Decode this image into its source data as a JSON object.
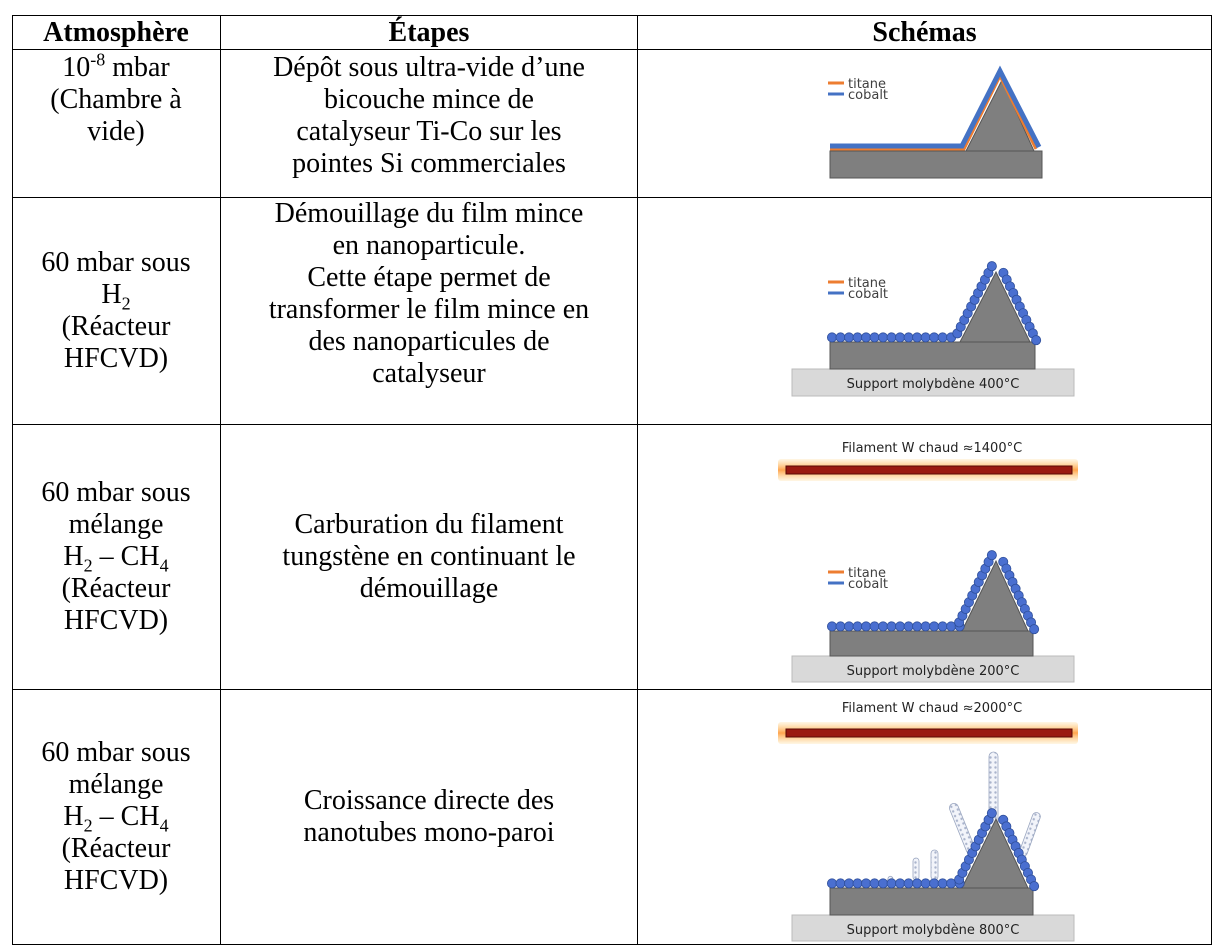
{
  "headers": [
    "Atmosphère",
    "Étapes",
    "Schémas"
  ],
  "rows": [
    {
      "atmosphere": {
        "l1_base": "10",
        "l1_sup": "-8",
        "l1_rest": " mbar",
        "l2": "(Chambre à",
        "l3": "vide)"
      },
      "etape": [
        "Dépôt sous ultra-vide d’une",
        "bicouche mince de",
        "catalyseur Ti-Co sur les",
        "pointes Si commerciales"
      ],
      "schema": {
        "legend": [
          "titane",
          "cobalt"
        ]
      }
    },
    {
      "atmosphere": {
        "l1": "60 mbar sous",
        "l2_base": "H",
        "l2_sub": "2",
        "l3": "(Réacteur",
        "l4": "HFCVD)"
      },
      "etape": [
        "Démouillage du film mince",
        "en nanoparticule.",
        "Cette étape permet de",
        "transformer le film mince en",
        "des nanoparticules de",
        "catalyseur"
      ],
      "schema": {
        "legend": [
          "titane",
          "cobalt"
        ],
        "support": "Support molybdène 400°C"
      }
    },
    {
      "atmosphere": {
        "l1": "60 mbar sous",
        "l2": "mélange",
        "l3_a": "H",
        "l3_a_sub": "2",
        "l3_mid": " – CH",
        "l3_b_sub": "4",
        "l4": "(Réacteur",
        "l5": "HFCVD)"
      },
      "etape": [
        "Carburation du filament",
        "tungstène en continuant le",
        "démouillage"
      ],
      "schema": {
        "filament": "Filament W chaud ≈1400°C",
        "legend": [
          "titane",
          "cobalt"
        ],
        "support": "Support molybdène 200°C"
      }
    },
    {
      "atmosphere": {
        "l1": "60 mbar sous",
        "l2": "mélange",
        "l3_a": "H",
        "l3_a_sub": "2",
        "l3_mid": " – CH",
        "l3_b_sub": "4",
        "l4": "(Réacteur",
        "l5": "HFCVD)"
      },
      "etape": [
        "Croissance directe des",
        "nanotubes mono-paroi"
      ],
      "schema": {
        "filament": "Filament W chaud ≈2000°C",
        "support": "Support molybdène 800°C"
      }
    }
  ],
  "colors": {
    "titane": "#ed7d31",
    "cobalt": "#4472c4",
    "substrate": "#7f7f7f",
    "support": "#d9d9d9",
    "particle": "#4a6fd0"
  }
}
